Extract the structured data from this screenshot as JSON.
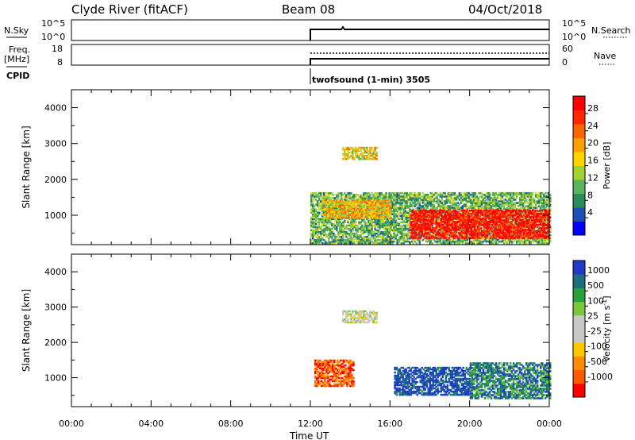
{
  "header": {
    "station": "Clyde River (fitACF)",
    "beam": "Beam 08",
    "date": "04/Oct/2018"
  },
  "summary_panels": {
    "nsky_label": "N.Sky",
    "nsky_ticks": [
      "10^5",
      "10^0"
    ],
    "nsearch_label": "N.Search",
    "nsearch_ticks": [
      "10^5",
      "10^0"
    ],
    "freq_label_line1": "Freq.",
    "freq_label_line2": "[MHz]",
    "freq_ticks": [
      "18",
      "8"
    ],
    "nave_label": "Nave",
    "nave_ticks": [
      "60",
      "0"
    ],
    "cpid_label": "CPID",
    "cpid_text": "twofsound (1-min) 3505"
  },
  "chart_data": [
    {
      "type": "heatmap",
      "quantity": "power",
      "ylabel": "Slant Range [km]",
      "ylim": [
        180,
        4500
      ],
      "yticks": [
        "1000",
        "2000",
        "3000",
        "4000"
      ],
      "xlim_hours": [
        0,
        24
      ],
      "colorbar_label": "Power [dB]",
      "colorbar_ticks": [
        "28",
        "24",
        "20",
        "16",
        "12",
        "8",
        "4"
      ],
      "colorscale": [
        "#0000ff",
        "#1e50b4",
        "#2a8c5a",
        "#5ab45a",
        "#a0d232",
        "#ffd200",
        "#ffa000",
        "#ff6400",
        "#ff2800",
        "#ff0000"
      ],
      "regions": [
        {
          "t0": 12.0,
          "t1": 24.0,
          "r0": 200,
          "r1": 1600,
          "level": 0.35
        },
        {
          "t0": 13.6,
          "t1": 15.3,
          "r0": 2550,
          "r1": 2900,
          "level": 0.55
        },
        {
          "t0": 17.0,
          "t1": 24.0,
          "r0": 350,
          "r1": 1150,
          "level": 0.92
        },
        {
          "t0": 12.6,
          "t1": 16.0,
          "r0": 900,
          "r1": 1400,
          "level": 0.62
        }
      ]
    },
    {
      "type": "heatmap",
      "quantity": "velocity",
      "ylabel": "Slant Range [km]",
      "ylim": [
        180,
        4500
      ],
      "yticks": [
        "1000",
        "2000",
        "3000",
        "4000"
      ],
      "xlim_hours": [
        0,
        24
      ],
      "colorbar_label": "Velocity [m s",
      "colorbar_sup": "-1",
      "colorbar_ticks": [
        "1000",
        "500",
        "100",
        "25",
        "-25",
        "-100",
        "-500",
        "-1000"
      ],
      "colorscale": [
        "#ff0000",
        "#ff5a00",
        "#ff8c00",
        "#ffc800",
        "#c8c8c8",
        "#c8c8c8",
        "#78c83c",
        "#28a03c",
        "#1e6e7e",
        "#1e3cc8"
      ],
      "regions": [
        {
          "t0": 13.6,
          "t1": 15.3,
          "r0": 2550,
          "r1": 2900,
          "level": 0.5
        },
        {
          "t0": 12.2,
          "t1": 14.2,
          "r0": 750,
          "r1": 1500,
          "level": 0.15
        },
        {
          "t0": 16.2,
          "t1": 20.0,
          "r0": 500,
          "r1": 1300,
          "level": 0.95
        },
        {
          "t0": 20.0,
          "t1": 24.0,
          "r0": 400,
          "r1": 1400,
          "level": 0.82
        }
      ]
    }
  ],
  "xaxis": {
    "label": "Time UT",
    "ticks": [
      "00:00",
      "04:00",
      "08:00",
      "12:00",
      "16:00",
      "20:00",
      "00:00"
    ]
  }
}
